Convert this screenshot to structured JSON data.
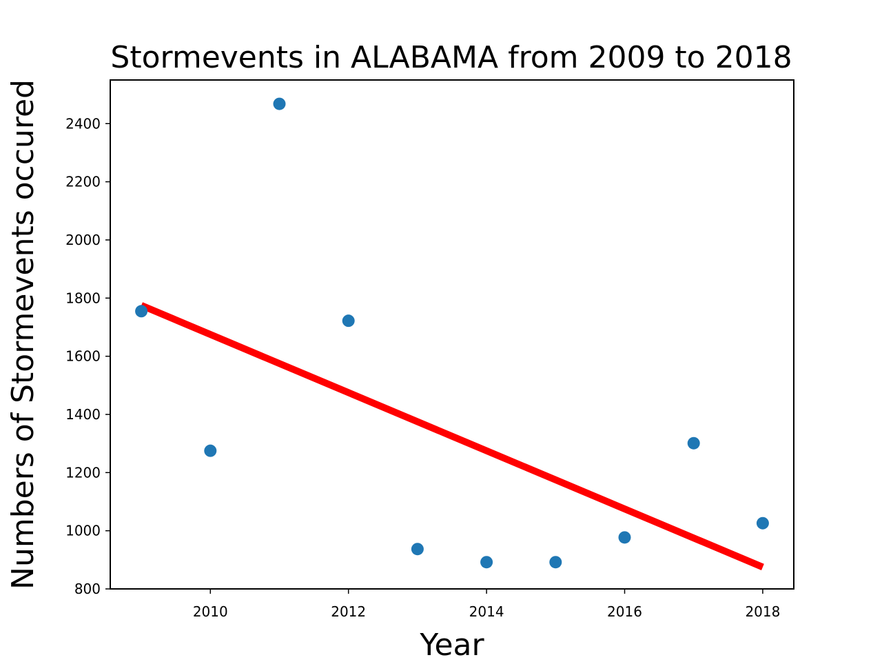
{
  "chart_data": {
    "type": "scatter",
    "title": "Stormevents in ALABAMA from 2009 to 2018",
    "xlabel": "Year",
    "ylabel": "Numbers of Stormevents occured",
    "xlim": [
      2008.55,
      2018.45
    ],
    "ylim": [
      800,
      2550
    ],
    "xticks": [
      2010,
      2012,
      2014,
      2016,
      2018
    ],
    "yticks": [
      800,
      1000,
      1200,
      1400,
      1600,
      1800,
      2000,
      2200,
      2400
    ],
    "grid": false,
    "points": {
      "x": [
        2009,
        2010,
        2011,
        2012,
        2013,
        2014,
        2015,
        2016,
        2017,
        2018
      ],
      "y": [
        1755,
        1275,
        2468,
        1722,
        937,
        892,
        892,
        977,
        1301,
        1026
      ]
    },
    "trend_line": {
      "x": [
        2009,
        2018
      ],
      "y": [
        1775,
        875
      ]
    },
    "colors": {
      "points": "#1f77b4",
      "trend_line": "#ff0000",
      "axes": "#000000",
      "background": "#ffffff"
    }
  }
}
